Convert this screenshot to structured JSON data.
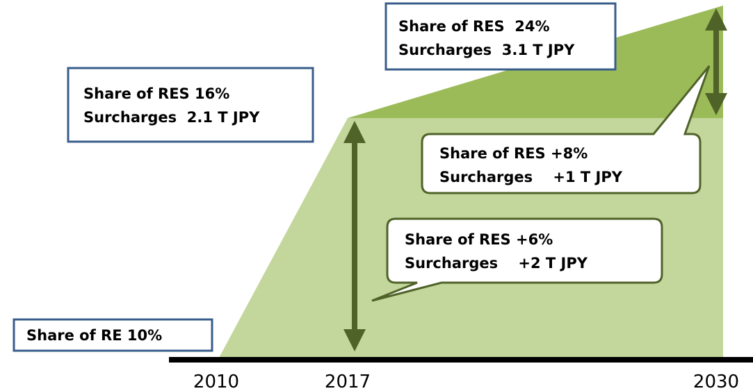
{
  "years": [
    "2010",
    "2017",
    "2030"
  ],
  "boxes": [
    {
      "lines": [
        "Share of RE 10%"
      ]
    },
    {
      "lines": [
        "Share of RES 16%",
        "Surcharges  2.1 T JPY"
      ]
    },
    {
      "lines": [
        "Share of RES  24%",
        "Surcharges  3.1 T JPY"
      ]
    }
  ],
  "callouts": [
    {
      "lines": [
        "Share of RES +8%",
        "Surcharges    +1 T JPY"
      ]
    },
    {
      "lines": [
        "Share of RES +6%",
        "Surcharges    +2 T JPY"
      ]
    }
  ]
}
